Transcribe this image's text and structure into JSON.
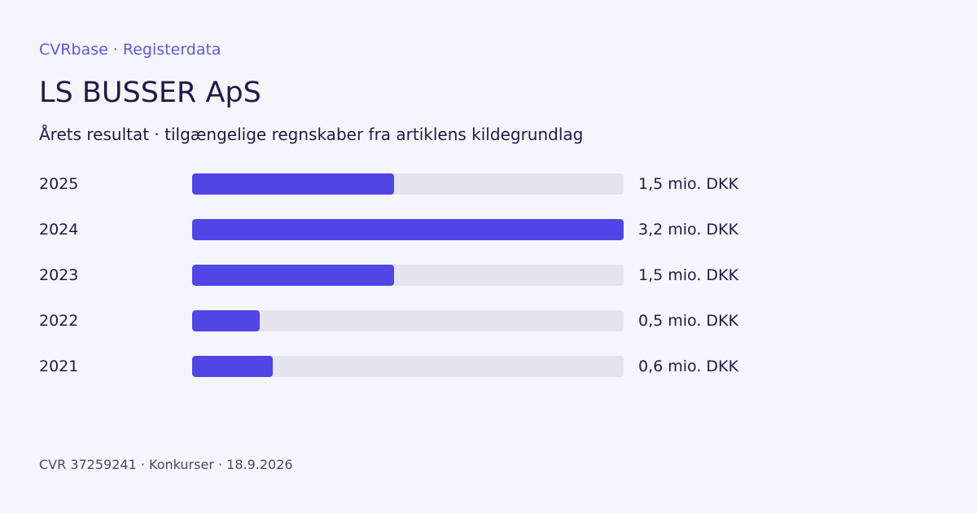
{
  "header": {
    "brand": "CVRbase · Registerdata",
    "title": "LS BUSSER ApS",
    "subtitle": "Årets resultat · tilgængelige regnskaber fra artiklens kildegrundlag"
  },
  "footer": {
    "text": "CVR 37259241 · Konkurser · 18.9.2026"
  },
  "colors": {
    "bar": "#4f46e5",
    "track": "#e4e4f0",
    "accent": "#5b5bd6"
  },
  "chart_data": {
    "type": "bar",
    "orientation": "horizontal",
    "categories": [
      "2025",
      "2024",
      "2023",
      "2022",
      "2021"
    ],
    "values": [
      1.5,
      3.2,
      1.5,
      0.5,
      0.6
    ],
    "value_labels": [
      "1,5 mio. DKK",
      "3,2 mio. DKK",
      "1,5 mio. DKK",
      "0,5 mio. DKK",
      "0,6 mio. DKK"
    ],
    "unit": "mio. DKK",
    "xlim": [
      0,
      3.2
    ],
    "grid": false,
    "legend": "none"
  }
}
